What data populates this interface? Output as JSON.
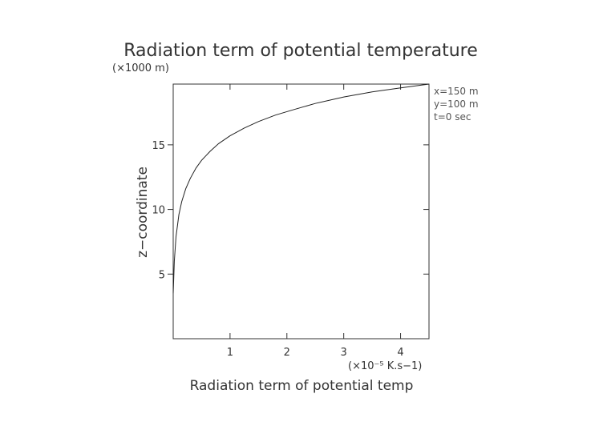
{
  "chart_data": {
    "type": "line",
    "title": "Radiation term of potential temperature",
    "xlabel": "Radiation term of potential temp",
    "x_unit": "(×10⁻⁵ K.s−1)",
    "ylabel": "z−coordinate",
    "y_unit": "(×1000 m)",
    "xlim": [
      0,
      4.5
    ],
    "ylim": [
      0,
      19.7
    ],
    "x_ticks": [
      1,
      2,
      3,
      4
    ],
    "y_ticks": [
      5,
      10,
      15
    ],
    "annotations": [
      "x=150 m",
      "y=100 m",
      "t=0 sec"
    ],
    "grid": false,
    "series": [
      {
        "x": [
          0.0,
          0.02,
          0.05,
          0.1,
          0.15,
          0.22,
          0.3,
          0.4,
          0.5,
          0.65,
          0.8,
          1.0,
          1.25,
          1.5,
          1.8,
          2.1,
          2.5,
          3.0,
          3.5,
          4.0,
          4.5
        ],
        "y": [
          3.5,
          6.0,
          7.9,
          9.6,
          10.6,
          11.6,
          12.4,
          13.2,
          13.8,
          14.5,
          15.1,
          15.7,
          16.3,
          16.8,
          17.3,
          17.7,
          18.2,
          18.7,
          19.1,
          19.4,
          19.7
        ]
      }
    ],
    "colors": {
      "line": "#222222",
      "axis": "#333333",
      "text": "#333333"
    }
  }
}
